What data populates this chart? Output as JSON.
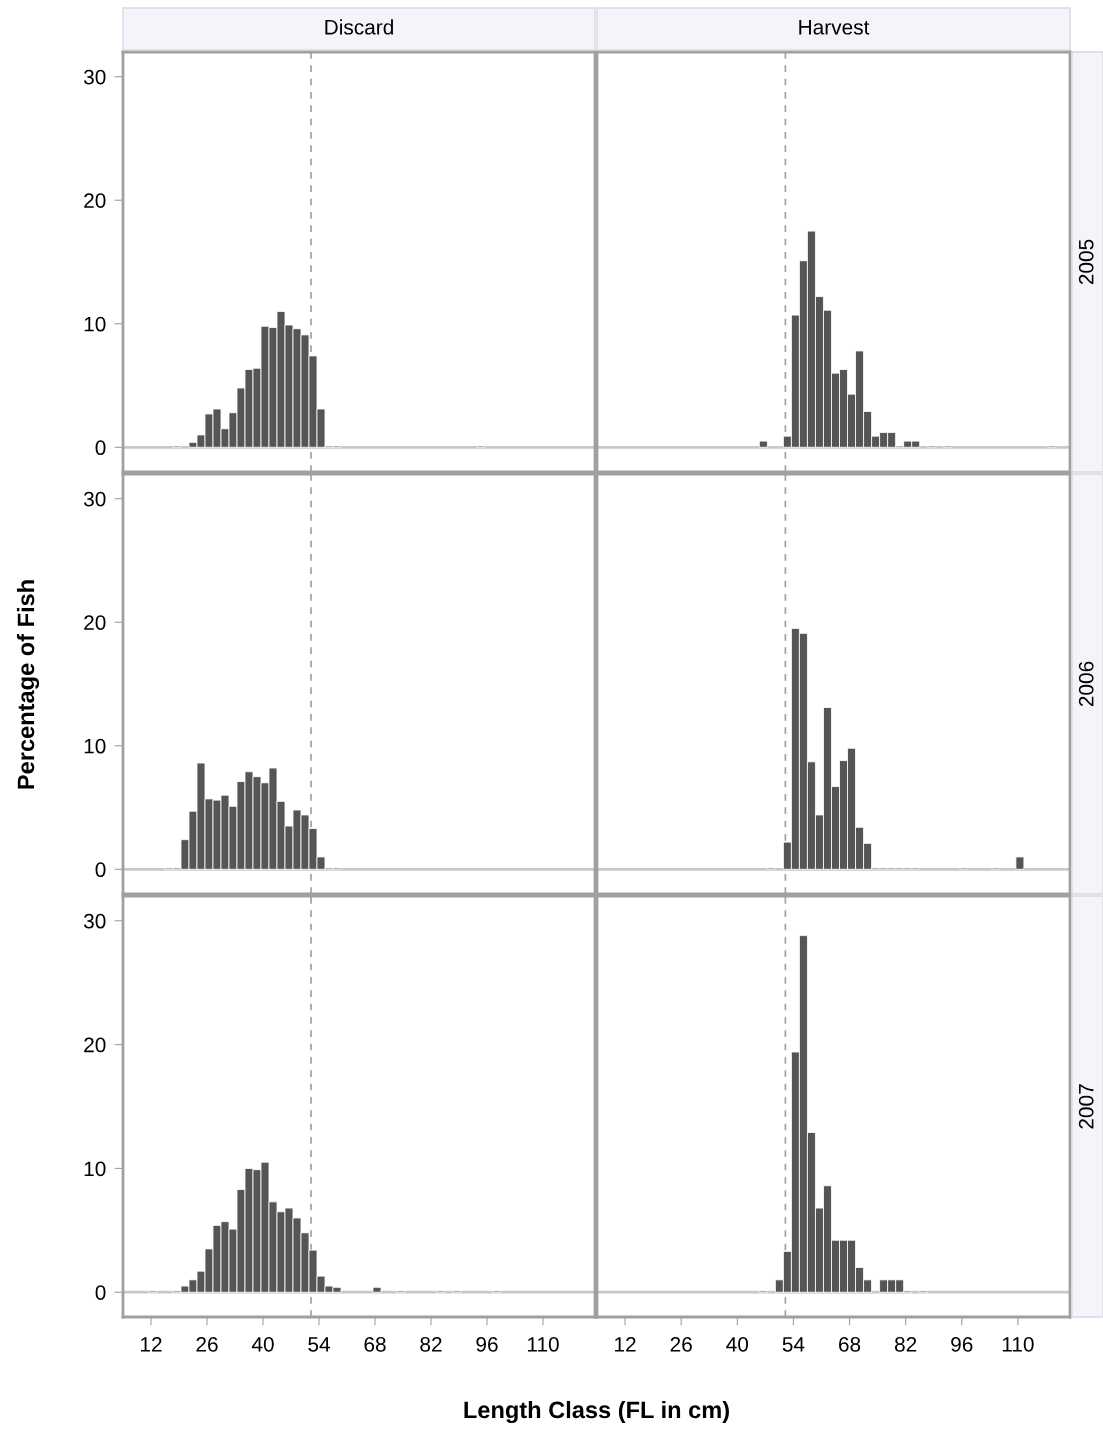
{
  "chart_data": [
    {
      "type": "histogram",
      "title": "Discard",
      "color": "#555555",
      "xlim": [
        5,
        123
      ],
      "ylim": [
        -2,
        32
      ],
      "xticks": [
        12,
        26,
        40,
        54,
        68,
        82,
        96,
        110
      ],
      "yticks": [
        0,
        10,
        20,
        30
      ],
      "tick_labels": "y",
      "grid": false,
      "bins": [
        17.5,
        19.5,
        21.5,
        23.5,
        25.5,
        27.5,
        29.5,
        31.5,
        33.5,
        35.5,
        37.5,
        39.5,
        41.5,
        43.5,
        45.5,
        47.5,
        49.5,
        51.5,
        53.5,
        55.5,
        57.5,
        59.5,
        61.5,
        63.5,
        65.5,
        67.5,
        69.5,
        71.5,
        73.5,
        75.5,
        77.5,
        79.5,
        81.5,
        83.5,
        85.5,
        87.5,
        89.5,
        91.5,
        93.5,
        95.5
      ],
      "values": [
        0.1,
        0,
        0.4,
        1.0,
        2.7,
        3.1,
        1.5,
        2.8,
        4.8,
        6.3,
        6.4,
        9.8,
        9.7,
        11.0,
        9.9,
        9.6,
        9.1,
        7.4,
        3.1,
        0.1,
        0.1,
        0,
        0,
        0,
        0,
        0,
        0,
        0,
        0,
        0,
        0,
        0,
        0,
        0,
        0,
        0,
        0,
        0,
        0.1
      ],
      "ref_lines": [
        {
          "axis": "y",
          "value": 0,
          "color": "#c8c8c8"
        },
        {
          "axis": "x",
          "value": 52,
          "color": "#a0a0a0",
          "line_style": "dashed"
        }
      ]
    },
    {
      "type": "histogram",
      "title": "Harvest",
      "y2label": "2005",
      "color": "#555555",
      "xlim": [
        5,
        123
      ],
      "ylim": [
        -2,
        32
      ],
      "xticks": [
        12,
        26,
        40,
        54,
        68,
        82,
        96,
        110
      ],
      "yticks": [
        0,
        10,
        20,
        30
      ],
      "tick_labels": false,
      "grid": false,
      "bins": [
        45.5,
        47.5,
        49.5,
        51.5,
        53.5,
        55.5,
        57.5,
        59.5,
        61.5,
        63.5,
        65.5,
        67.5,
        69.5,
        71.5,
        73.5,
        75.5,
        77.5,
        79.5,
        81.5,
        83.5,
        85.5,
        87.5,
        89.5,
        91.5,
        93.5,
        95.5,
        97.5,
        99.5,
        101.5,
        103.5,
        105.5,
        107.5,
        109.5,
        111.5,
        113.5,
        115.5,
        117.5,
        119.5
      ],
      "values": [
        0.5,
        0,
        0,
        0.9,
        10.7,
        15.1,
        17.5,
        12.2,
        11.1,
        6.0,
        6.3,
        4.3,
        7.8,
        2.9,
        0.9,
        1.2,
        1.2,
        0.1,
        0.5,
        0.5,
        0,
        0.1,
        0,
        0.1,
        0,
        0,
        0,
        0,
        0,
        0,
        0,
        0,
        0,
        0,
        0,
        0,
        0.1
      ],
      "ref_lines": [
        {
          "axis": "y",
          "value": 0,
          "color": "#c8c8c8"
        },
        {
          "axis": "x",
          "value": 52,
          "color": "#a0a0a0",
          "line_style": "dashed"
        }
      ]
    },
    {
      "type": "histogram",
      "ylabel": "Percentage of Fish",
      "color": "#555555",
      "xlim": [
        5,
        123
      ],
      "ylim": [
        -2,
        32
      ],
      "xticks": [
        12,
        26,
        40,
        54,
        68,
        82,
        96,
        110
      ],
      "yticks": [
        0,
        10,
        20,
        30
      ],
      "tick_labels": "y",
      "grid": false,
      "bins": [
        15.5,
        17.5,
        19.5,
        21.5,
        23.5,
        25.5,
        27.5,
        29.5,
        31.5,
        33.5,
        35.5,
        37.5,
        39.5,
        41.5,
        43.5,
        45.5,
        47.5,
        49.5,
        51.5,
        53.5,
        55.5,
        57.5,
        59.5
      ],
      "values": [
        0.1,
        0.1,
        2.4,
        4.7,
        8.6,
        5.7,
        5.6,
        6.0,
        5.1,
        7.1,
        7.9,
        7.5,
        7.0,
        8.2,
        5.5,
        3.5,
        4.8,
        4.4,
        3.3,
        1.0,
        0.1,
        0.1
      ],
      "ref_lines": [
        {
          "axis": "y",
          "value": 0,
          "color": "#c8c8c8"
        },
        {
          "axis": "x",
          "value": 52,
          "color": "#a0a0a0",
          "line_style": "dashed"
        }
      ]
    },
    {
      "type": "histogram",
      "y2label": "2006",
      "color": "#555555",
      "xlim": [
        5,
        123
      ],
      "ylim": [
        -2,
        32
      ],
      "xticks": [
        12,
        26,
        40,
        54,
        68,
        82,
        96,
        110
      ],
      "yticks": [
        0,
        10,
        20,
        30
      ],
      "tick_labels": false,
      "grid": false,
      "bins": [
        47.5,
        49.5,
        51.5,
        53.5,
        55.5,
        57.5,
        59.5,
        61.5,
        63.5,
        65.5,
        67.5,
        69.5,
        71.5,
        73.5,
        75.5,
        77.5,
        79.5,
        81.5,
        83.5,
        85.5,
        87.5,
        89.5,
        91.5,
        93.5,
        95.5,
        97.5,
        99.5,
        101.5,
        103.5,
        105.5,
        107.5,
        109.5,
        111.5
      ],
      "values": [
        0.1,
        0,
        2.2,
        19.5,
        19.1,
        8.7,
        4.4,
        13.1,
        6.7,
        8.8,
        9.8,
        3.4,
        2.1,
        0.1,
        0.1,
        0.1,
        0.1,
        0.1,
        0.1,
        0,
        0,
        0,
        0,
        0,
        0.1,
        0,
        0,
        0,
        0.1,
        0,
        0,
        1.0
      ],
      "ref_lines": [
        {
          "axis": "y",
          "value": 0,
          "color": "#c8c8c8"
        },
        {
          "axis": "x",
          "value": 52,
          "color": "#a0a0a0",
          "line_style": "dashed"
        }
      ]
    },
    {
      "type": "histogram",
      "xlabel": "Length Class (FL in cm)",
      "color": "#555555",
      "xlim": [
        5,
        123
      ],
      "ylim": [
        -2,
        32
      ],
      "xticks": [
        12,
        26,
        40,
        54,
        68,
        82,
        96,
        110
      ],
      "yticks": [
        0,
        10,
        20,
        30
      ],
      "grid": false,
      "bins": [
        11.5,
        13.5,
        15.5,
        17.5,
        19.5,
        21.5,
        23.5,
        25.5,
        27.5,
        29.5,
        31.5,
        33.5,
        35.5,
        37.5,
        39.5,
        41.5,
        43.5,
        45.5,
        47.5,
        49.5,
        51.5,
        53.5,
        55.5,
        57.5,
        59.5,
        61.5,
        63.5,
        65.5,
        67.5,
        69.5,
        71.5,
        73.5,
        75.5,
        77.5,
        79.5,
        81.5,
        83.5,
        85.5,
        87.5,
        89.5,
        91.5,
        93.5,
        95.5,
        97.5,
        99.5
      ],
      "values": [
        0.1,
        0,
        0,
        0.1,
        0.5,
        1.0,
        1.7,
        3.5,
        5.4,
        5.7,
        5.1,
        8.3,
        10.0,
        9.9,
        10.5,
        7.3,
        6.5,
        6.8,
        6.0,
        4.8,
        3.4,
        1.3,
        0.5,
        0.4,
        0,
        0,
        0,
        0,
        0.4,
        0,
        0,
        0.1,
        0,
        0,
        0,
        0,
        0.1,
        0,
        0.1,
        0,
        0,
        0,
        0,
        0.1
      ],
      "ref_lines": [
        {
          "axis": "y",
          "value": 0,
          "color": "#c8c8c8"
        },
        {
          "axis": "x",
          "value": 52,
          "color": "#a0a0a0",
          "line_style": "dashed"
        }
      ]
    },
    {
      "type": "histogram",
      "y2label": "2007",
      "color": "#555555",
      "xlim": [
        5,
        123
      ],
      "ylim": [
        -2,
        32
      ],
      "xticks": [
        12,
        26,
        40,
        54,
        68,
        82,
        96,
        110
      ],
      "yticks": [
        0,
        10,
        20,
        30
      ],
      "tick_labels": "x",
      "grid": false,
      "bins": [
        45.5,
        47.5,
        49.5,
        51.5,
        53.5,
        55.5,
        57.5,
        59.5,
        61.5,
        63.5,
        65.5,
        67.5,
        69.5,
        71.5,
        73.5,
        75.5,
        77.5,
        79.5,
        81.5,
        83.5,
        85.5,
        87.5
      ],
      "values": [
        0.1,
        0,
        1.0,
        3.3,
        19.4,
        28.8,
        12.9,
        6.8,
        8.6,
        4.2,
        4.2,
        4.2,
        2.0,
        1.0,
        0,
        1.0,
        1.0,
        1.0,
        0.1,
        0,
        0.1
      ],
      "ref_lines": [
        {
          "axis": "y",
          "value": 0,
          "color": "#c8c8c8"
        },
        {
          "axis": "x",
          "value": 52,
          "color": "#a0a0a0",
          "line_style": "dashed"
        }
      ]
    }
  ]
}
